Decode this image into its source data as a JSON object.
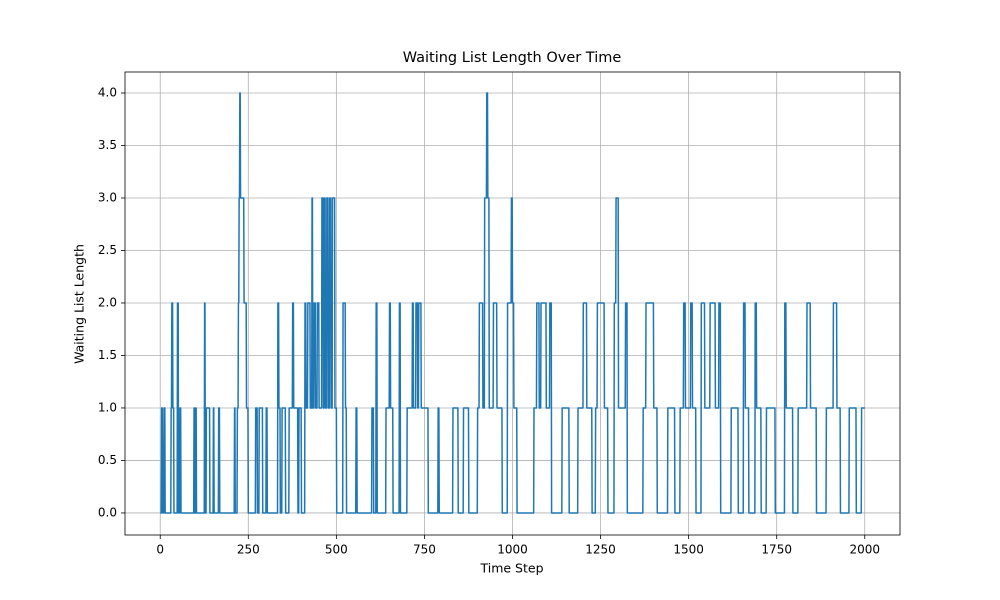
{
  "chart_data": {
    "type": "line",
    "title": "Waiting List Length Over Time",
    "x_label": "Time Step",
    "y_label": "Waiting List Length",
    "color": "#1f77b4",
    "grid": true,
    "xlim": [
      -100,
      2100
    ],
    "ylim": [
      -0.21,
      4.2
    ],
    "xticks": [
      0,
      250,
      500,
      750,
      1000,
      1250,
      1500,
      1750,
      2000
    ],
    "yticks": [
      {
        "value": 0,
        "label": "0.0"
      },
      {
        "value": 0.5,
        "label": "0.5"
      },
      {
        "value": 1,
        "label": "1.0"
      },
      {
        "value": 1.5,
        "label": "1.5"
      },
      {
        "value": 2,
        "label": "2.0"
      },
      {
        "value": 2.5,
        "label": "2.5"
      },
      {
        "value": 3,
        "label": "3.0"
      },
      {
        "value": 3.5,
        "label": "3.5"
      },
      {
        "value": 4,
        "label": "4.0"
      }
    ],
    "x": [
      0,
      3,
      4,
      6,
      7,
      10,
      11,
      13,
      14,
      30,
      31,
      32,
      33,
      35,
      36,
      38,
      39,
      48,
      49,
      51,
      52,
      55,
      56,
      58,
      59,
      95,
      96,
      97,
      98,
      100,
      101,
      102,
      103,
      125,
      126,
      127,
      128,
      130,
      131,
      140,
      141,
      150,
      151,
      152,
      153,
      165,
      166,
      168,
      169,
      210,
      211,
      212,
      213,
      218,
      219,
      221,
      222,
      223,
      224,
      225,
      226,
      227,
      228,
      237,
      238,
      244,
      245,
      249,
      250,
      270,
      271,
      275,
      276,
      280,
      281,
      290,
      291,
      300,
      301,
      303,
      304,
      333,
      334,
      336,
      337,
      340,
      341,
      345,
      346,
      355,
      356,
      365,
      366,
      375,
      376,
      378,
      379,
      390,
      391,
      393,
      394,
      400,
      401,
      410,
      411,
      413,
      414,
      418,
      419,
      425,
      426,
      430,
      431,
      432,
      433,
      436,
      437,
      440,
      441,
      445,
      446,
      450,
      451,
      458,
      459,
      462,
      463,
      465,
      466,
      468,
      469,
      472,
      473,
      476,
      477,
      480,
      481,
      484,
      485,
      488,
      489,
      495,
      496,
      500,
      501,
      518,
      519,
      525,
      526,
      528,
      529,
      555,
      556,
      558,
      559,
      600,
      601,
      605,
      606,
      612,
      613,
      615,
      616,
      640,
      641,
      650,
      651,
      653,
      654,
      660,
      661,
      678,
      679,
      681,
      682,
      700,
      701,
      715,
      716,
      718,
      719,
      725,
      726,
      730,
      731,
      733,
      734,
      740,
      741,
      760,
      761,
      788,
      789,
      791,
      792,
      830,
      831,
      845,
      846,
      860,
      861,
      875,
      876,
      900,
      901,
      905,
      906,
      915,
      916,
      920,
      921,
      926,
      927,
      929,
      930,
      933,
      934,
      945,
      946,
      955,
      956,
      970,
      971,
      985,
      986,
      996,
      997,
      999,
      1000,
      1003,
      1004,
      1012,
      1013,
      1060,
      1061,
      1068,
      1069,
      1075,
      1076,
      1080,
      1081,
      1095,
      1096,
      1105,
      1106,
      1110,
      1111,
      1140,
      1141,
      1160,
      1161,
      1185,
      1186,
      1200,
      1201,
      1210,
      1211,
      1225,
      1226,
      1235,
      1236,
      1240,
      1241,
      1260,
      1261,
      1270,
      1271,
      1288,
      1289,
      1293,
      1294,
      1300,
      1301,
      1320,
      1321,
      1325,
      1326,
      1370,
      1371,
      1378,
      1379,
      1400,
      1401,
      1410,
      1411,
      1440,
      1441,
      1460,
      1461,
      1475,
      1476,
      1485,
      1486,
      1490,
      1491,
      1505,
      1506,
      1510,
      1511,
      1520,
      1521,
      1535,
      1536,
      1545,
      1546,
      1560,
      1561,
      1575,
      1576,
      1585,
      1586,
      1590,
      1591,
      1620,
      1621,
      1640,
      1641,
      1655,
      1656,
      1660,
      1661,
      1670,
      1671,
      1688,
      1689,
      1692,
      1693,
      1705,
      1706,
      1720,
      1721,
      1745,
      1746,
      1772,
      1773,
      1776,
      1777,
      1795,
      1796,
      1810,
      1811,
      1835,
      1836,
      1845,
      1846,
      1862,
      1863,
      1890,
      1891,
      1910,
      1911,
      1920,
      1921,
      1930,
      1931,
      1955,
      1956,
      1975,
      1976,
      1990,
      1991,
      2000
    ],
    "values": [
      0,
      0,
      1,
      1,
      0,
      0,
      1,
      1,
      0,
      0,
      1,
      1,
      2,
      2,
      1,
      1,
      0,
      0,
      2,
      2,
      0,
      0,
      1,
      1,
      0,
      0,
      1,
      1,
      0,
      0,
      1,
      1,
      0,
      0,
      2,
      2,
      0,
      0,
      1,
      1,
      0,
      0,
      1,
      1,
      0,
      0,
      1,
      1,
      0,
      0,
      1,
      1,
      0,
      0,
      1,
      1,
      2,
      2,
      3,
      3,
      4,
      4,
      3,
      3,
      2,
      2,
      1,
      1,
      0,
      0,
      1,
      1,
      0,
      0,
      1,
      1,
      0,
      0,
      1,
      1,
      0,
      0,
      2,
      2,
      1,
      1,
      0,
      0,
      1,
      1,
      0,
      0,
      1,
      1,
      2,
      2,
      1,
      1,
      0,
      0,
      1,
      1,
      0,
      0,
      2,
      2,
      1,
      1,
      2,
      2,
      1,
      1,
      3,
      3,
      1,
      1,
      2,
      2,
      1,
      1,
      2,
      2,
      1,
      1,
      3,
      3,
      1,
      1,
      3,
      3,
      1,
      1,
      3,
      3,
      1,
      1,
      3,
      3,
      1,
      1,
      3,
      3,
      1,
      1,
      0,
      0,
      2,
      2,
      1,
      1,
      0,
      0,
      1,
      1,
      0,
      0,
      1,
      1,
      0,
      0,
      2,
      2,
      0,
      0,
      1,
      1,
      2,
      2,
      1,
      1,
      0,
      0,
      2,
      2,
      0,
      0,
      1,
      1,
      2,
      2,
      1,
      1,
      2,
      2,
      1,
      1,
      2,
      2,
      1,
      1,
      0,
      0,
      1,
      1,
      0,
      0,
      1,
      1,
      0,
      0,
      1,
      1,
      0,
      0,
      1,
      1,
      2,
      2,
      1,
      1,
      3,
      3,
      4,
      4,
      3,
      3,
      1,
      1,
      2,
      2,
      1,
      1,
      0,
      0,
      2,
      2,
      3,
      3,
      2,
      2,
      1,
      1,
      0,
      0,
      1,
      1,
      2,
      2,
      1,
      1,
      2,
      2,
      1,
      1,
      2,
      2,
      0,
      0,
      1,
      1,
      0,
      0,
      1,
      1,
      2,
      2,
      1,
      1,
      0,
      0,
      1,
      1,
      2,
      2,
      1,
      1,
      0,
      0,
      2,
      2,
      3,
      3,
      1,
      1,
      2,
      2,
      0,
      0,
      1,
      1,
      2,
      2,
      1,
      1,
      0,
      0,
      1,
      1,
      0,
      0,
      1,
      1,
      2,
      2,
      1,
      1,
      2,
      2,
      1,
      1,
      0,
      0,
      2,
      2,
      1,
      1,
      2,
      2,
      1,
      1,
      2,
      2,
      0,
      0,
      1,
      1,
      0,
      0,
      2,
      2,
      1,
      1,
      0,
      0,
      2,
      2,
      1,
      1,
      0,
      0,
      1,
      1,
      0,
      0,
      2,
      2,
      1,
      1,
      0,
      0,
      1,
      1,
      2,
      2,
      1,
      1,
      0,
      0,
      1,
      1,
      2,
      2,
      1,
      1,
      0,
      0,
      1,
      1,
      0,
      0,
      1,
      1
    ]
  }
}
